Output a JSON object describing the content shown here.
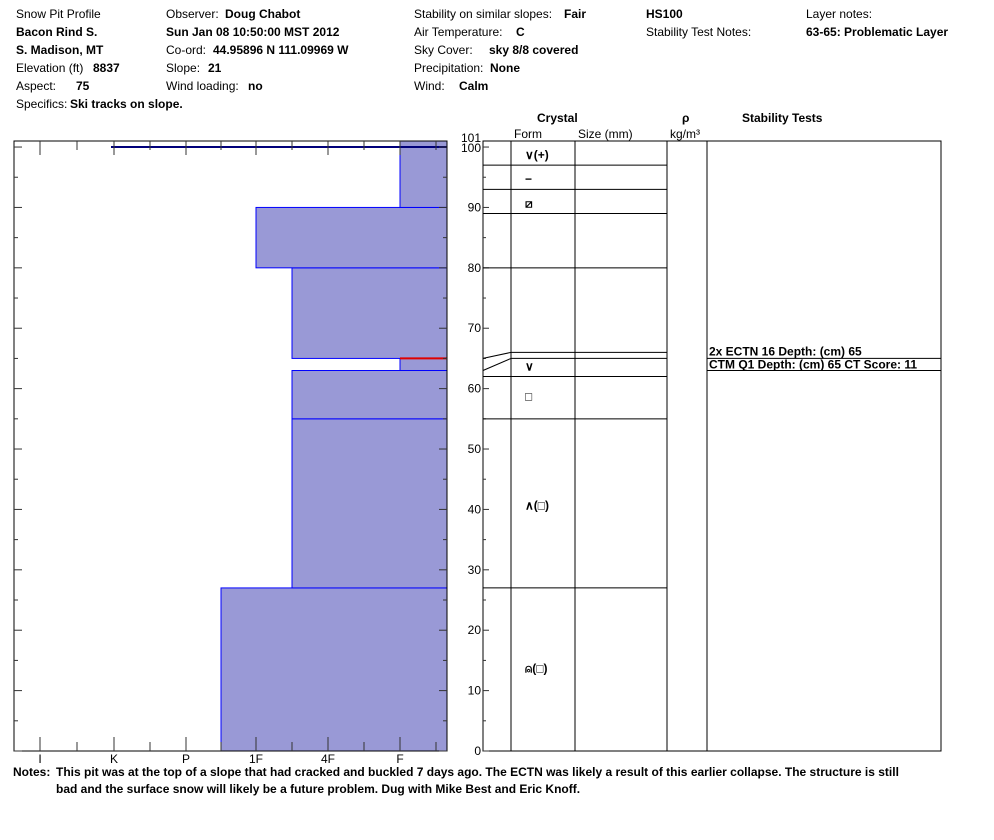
{
  "header": {
    "title": "Snow Pit Profile",
    "location_name": "Bacon Rind S.",
    "region": "S. Madison, MT",
    "elevation_label": "Elevation (ft)",
    "elevation_value": "8837",
    "aspect_label": "Aspect:",
    "aspect_value": "75",
    "specifics_label": "Specifics:",
    "specifics_value": "Ski tracks on slope.",
    "observer_label": "Observer:",
    "observer_value": "Doug Chabot",
    "datetime": "Sun Jan 08 10:50:00 MST 2012",
    "coord_label": "Co-ord:",
    "coord_value": "44.95896 N 111.09969 W",
    "slope_label": "Slope:",
    "slope_value": "21",
    "wind_loading_label": "Wind loading:",
    "wind_loading_value": "no",
    "stability_label": "Stability on similar slopes:",
    "stability_value": "Fair",
    "air_temp_label": "Air Temperature:",
    "air_temp_value": "C",
    "sky_label": "Sky Cover:",
    "sky_value": "sky 8/8 covered",
    "precip_label": "Precipitation:",
    "precip_value": "None",
    "wind_label": "Wind:",
    "wind_value": "Calm",
    "hs": "HS100",
    "stability_test_notes_label": "Stability Test Notes:",
    "layer_notes_label": "Layer notes:",
    "layer_notes_value": "63-65: Problematic Layer"
  },
  "columns": {
    "crystal": "Crystal",
    "form": "Form",
    "size": "Size (mm)",
    "rho": "ρ",
    "density_unit": "kg/m³",
    "stability_tests": "Stability Tests"
  },
  "notes": {
    "label": "Notes:",
    "line1": "This pit was at the top of a slope that had cracked and buckled 7 days ago. The ECTN was likely a result of this earlier collapse.  The structure is still",
    "line2": "bad and the surface snow will likely be a future problem. Dug with Mike Best and Eric Knoff."
  },
  "chart_data": {
    "type": "bar",
    "title": "Snow Pit Profile",
    "hardness_axis_labels": [
      "I",
      "K",
      "P",
      "1F",
      "4F",
      "F"
    ],
    "height_axis_ticks": [
      0,
      10,
      20,
      30,
      40,
      50,
      60,
      70,
      80,
      90,
      100,
      101
    ],
    "height_range_cm": [
      0,
      101
    ],
    "hardness_layers": [
      {
        "bottom": 0,
        "top": 27,
        "hardness": "P-1F"
      },
      {
        "bottom": 27,
        "top": 55,
        "hardness": "1F-4F"
      },
      {
        "bottom": 55,
        "top": 63,
        "hardness": "4F-1F"
      },
      {
        "bottom": 63,
        "top": 65,
        "hardness": "F"
      },
      {
        "bottom": 65,
        "top": 80,
        "hardness": "1F-4F"
      },
      {
        "bottom": 80,
        "top": 90,
        "hardness": "1F+"
      },
      {
        "bottom": 90,
        "top": 101,
        "hardness": "F"
      }
    ],
    "layer_boundaries_cm": [
      27,
      55,
      62,
      63,
      65,
      80,
      89,
      93,
      97,
      101
    ],
    "crystal_forms": [
      {
        "height": 99,
        "symbol": "∨(+)"
      },
      {
        "height": 95,
        "symbol": "−"
      },
      {
        "height": 91,
        "symbol": "⧄"
      },
      {
        "height": 64,
        "symbol": "∨"
      },
      {
        "height": 59,
        "symbol": "□"
      },
      {
        "height": 41,
        "symbol": "∧(□)"
      },
      {
        "height": 14,
        "symbol": "⍝(□)"
      }
    ],
    "stability_tests": [
      {
        "depth_cm": 65,
        "text": "2x ECTN 16   Depth: (cm) 65"
      },
      {
        "depth_cm": 65,
        "text": "CTM Q1 Depth: (cm) 65 CT Score: 11"
      }
    ],
    "marker_lines": [
      {
        "height": 100,
        "color": "#00007a"
      },
      {
        "height": 65,
        "color": "#e00000"
      }
    ],
    "fill_color": "#9999d6",
    "edge_color": "#0000ff"
  }
}
